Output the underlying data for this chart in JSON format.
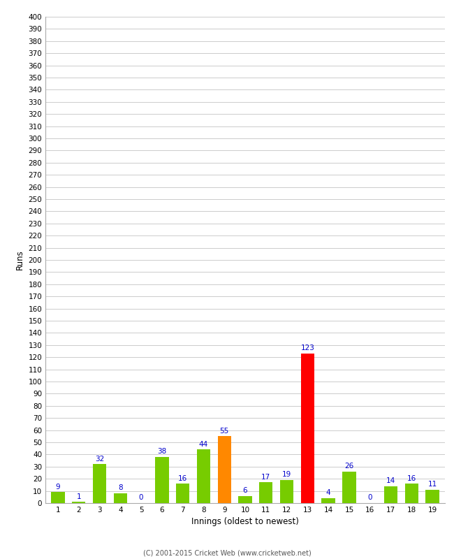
{
  "xlabel": "Innings (oldest to newest)",
  "ylabel": "Runs",
  "categories": [
    1,
    2,
    3,
    4,
    5,
    6,
    7,
    8,
    9,
    10,
    11,
    12,
    13,
    14,
    15,
    16,
    17,
    18,
    19
  ],
  "values": [
    9,
    1,
    32,
    8,
    0,
    38,
    16,
    44,
    55,
    6,
    17,
    19,
    123,
    4,
    26,
    0,
    14,
    16,
    11
  ],
  "bar_colors": [
    "#77cc00",
    "#77cc00",
    "#77cc00",
    "#77cc00",
    "#77cc00",
    "#77cc00",
    "#77cc00",
    "#77cc00",
    "#ff8800",
    "#77cc00",
    "#77cc00",
    "#77cc00",
    "#ff0000",
    "#77cc00",
    "#77cc00",
    "#77cc00",
    "#77cc00",
    "#77cc00",
    "#77cc00"
  ],
  "ylim": [
    0,
    400
  ],
  "ytick_step": 10,
  "background_color": "#ffffff",
  "grid_color": "#cccccc",
  "label_color": "#0000cc",
  "footer": "(C) 2001-2015 Cricket Web (www.cricketweb.net)"
}
